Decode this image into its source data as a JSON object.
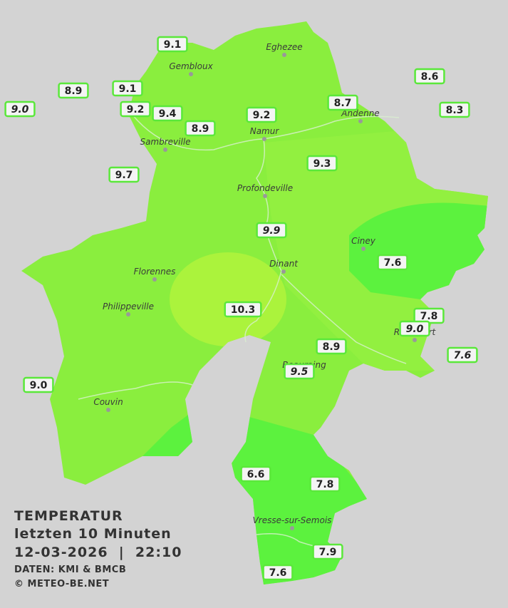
{
  "cities": [
    "Eghezee",
    "Gembloux",
    "Andenne",
    "Namur",
    "Sambreville",
    "Profondeville",
    "Ciney",
    "Dinant",
    "Florennes",
    "Philippeville",
    "Rochefort",
    "Beauraing",
    "Couvin",
    "Vresse-sur-Semois"
  ],
  "stations": [
    "9.1",
    "8.9",
    "9.1",
    "9.0",
    "9.2",
    "9.4",
    "8.9",
    "9.2",
    "8.7",
    "8.6",
    "8.3",
    "9.7",
    "9.3",
    "9.9",
    "7.6",
    "10.3",
    "7.8",
    "9.0",
    "7.6",
    "8.9",
    "9.5",
    "9.0",
    "6.6",
    "7.8",
    "7.9",
    "7.6"
  ],
  "caption": {
    "title": "TEMPERATUR",
    "subtitle": "letzten 10 Minuten",
    "datetime": "12-03-2026  |  22:10",
    "source": "DATEN: KMI & BMCB",
    "copyright": "© METEO-BE.NET"
  }
}
